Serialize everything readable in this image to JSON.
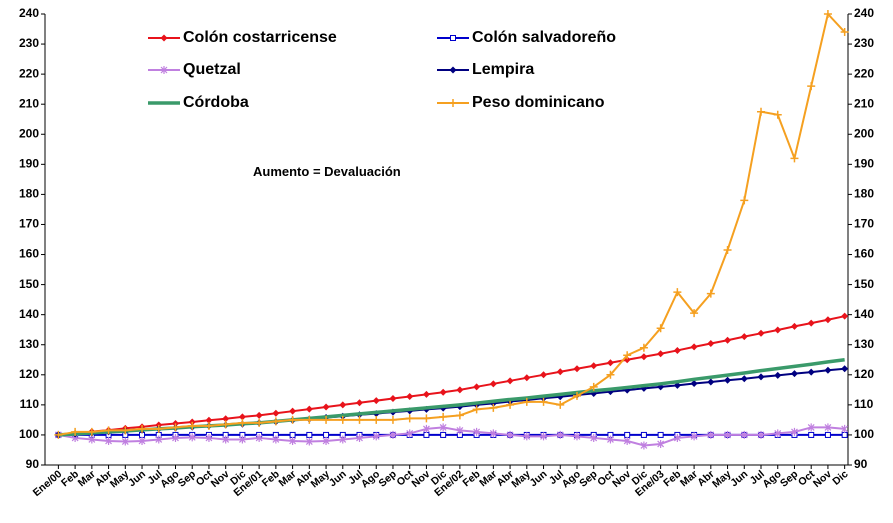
{
  "chart_data": {
    "type": "line",
    "annotations": [
      "Aumento = Devaluación"
    ],
    "categories": [
      "Ene/00",
      "Feb",
      "Mar",
      "Abr",
      "May",
      "Jun",
      "Jul",
      "Ago",
      "Sep",
      "Oct",
      "Nov",
      "Dic",
      "Ene/01",
      "Feb",
      "Mar",
      "Abr",
      "May",
      "Jun",
      "Jul",
      "Ago",
      "Sep",
      "Oct",
      "Nov",
      "Dic",
      "Ene/02",
      "Feb",
      "Mar",
      "Abr",
      "May",
      "Jun",
      "Jul",
      "Ago",
      "Sep",
      "Oct",
      "Nov",
      "Dic",
      "Ene/03",
      "Feb",
      "Mar",
      "Abr",
      "May",
      "Jun",
      "Jul",
      "Ago",
      "Sep",
      "Oct",
      "Nov",
      "Dic"
    ],
    "ylim": [
      90,
      240
    ],
    "yticks": [
      90,
      100,
      110,
      120,
      130,
      140,
      150,
      160,
      170,
      180,
      190,
      200,
      210,
      220,
      230,
      240
    ],
    "y2lim": [
      90,
      240
    ],
    "y2ticks": [
      90,
      100,
      110,
      120,
      130,
      140,
      150,
      160,
      170,
      180,
      190,
      200,
      210,
      220,
      230,
      240
    ],
    "grid": false,
    "series": [
      {
        "name": "Colón costarricense",
        "color": "#e8131b",
        "marker": "diamond",
        "values": [
          100,
          100.5,
          101.1,
          101.6,
          102.2,
          102.7,
          103.3,
          103.8,
          104.3,
          104.9,
          105.4,
          106,
          106.5,
          107.2,
          107.9,
          108.6,
          109.3,
          110,
          110.7,
          111.4,
          112.1,
          112.8,
          113.5,
          114.2,
          115,
          116,
          117,
          118,
          119,
          120,
          121,
          122,
          123,
          124,
          125,
          126,
          127,
          128.1,
          129.3,
          130.4,
          131.5,
          132.7,
          133.8,
          134.9,
          136.1,
          137.2,
          138.3,
          139.5
        ]
      },
      {
        "name": "Colón salvadoreño",
        "color": "#0000cc",
        "marker": "square",
        "values": [
          100,
          100,
          100,
          100,
          100,
          100,
          100,
          100,
          100,
          100,
          100,
          100,
          100,
          100,
          100,
          100,
          100,
          100,
          100,
          100,
          100,
          100,
          100,
          100,
          100,
          100,
          100,
          100,
          100,
          100,
          100,
          100,
          100,
          100,
          100,
          100,
          100,
          100,
          100,
          100,
          100,
          100,
          100,
          100,
          100,
          100,
          100,
          100
        ]
      },
      {
        "name": "Quetzal",
        "color": "#c080e0",
        "marker": "star",
        "values": [
          100,
          99,
          98.5,
          98,
          97.8,
          98,
          98.5,
          99,
          99.2,
          99,
          98.5,
          98.5,
          99,
          98.5,
          98,
          97.8,
          98,
          98.5,
          99,
          99.5,
          100,
          100.5,
          102,
          102.5,
          101.5,
          101,
          100.5,
          100,
          99.5,
          99.5,
          100,
          99.5,
          99,
          98.5,
          98,
          96.5,
          97,
          99,
          99.5,
          100,
          100,
          100,
          100,
          100.5,
          101,
          102.5,
          102.5,
          102
        ]
      },
      {
        "name": "Lempira",
        "color": "#000080",
        "marker": "diamond",
        "values": [
          100,
          100.3,
          100.6,
          101,
          101.3,
          101.6,
          102,
          102.3,
          102.6,
          103,
          103.3,
          103.6,
          104,
          104.4,
          104.9,
          105.3,
          105.8,
          106.2,
          106.7,
          107.1,
          107.6,
          108,
          108.5,
          108.9,
          109.4,
          110,
          110.5,
          111.1,
          111.6,
          112.2,
          112.7,
          113.3,
          113.8,
          114.4,
          114.9,
          115.5,
          116,
          116.5,
          117.1,
          117.6,
          118.2,
          118.7,
          119.3,
          119.8,
          120.4,
          120.9,
          121.5,
          122
        ]
      },
      {
        "name": "Córdoba",
        "color": "#3a9a6a",
        "marker": "none",
        "values": [
          100,
          100.3,
          100.7,
          101,
          101.3,
          101.7,
          102,
          102.3,
          102.7,
          103,
          103.3,
          103.7,
          104,
          104.5,
          105,
          105.5,
          106,
          106.5,
          107,
          107.5,
          108,
          108.5,
          109,
          109.5,
          110,
          110.6,
          111.2,
          111.8,
          112.3,
          112.9,
          113.5,
          114.1,
          114.7,
          115.2,
          115.8,
          116.4,
          117,
          117.7,
          118.5,
          119.2,
          119.9,
          120.6,
          121.4,
          122.1,
          122.8,
          123.5,
          124.3,
          125
        ]
      },
      {
        "name": "Peso dominicano",
        "color": "#f5a020",
        "marker": "plus",
        "values": [
          100,
          101,
          101,
          101.5,
          101.5,
          102,
          102,
          102.5,
          103,
          103,
          103.5,
          104,
          104,
          104.5,
          105,
          105,
          105,
          105,
          105,
          105,
          105,
          105.5,
          105.5,
          106,
          106.5,
          108.5,
          109,
          110,
          111,
          111,
          110,
          113,
          116,
          120,
          126.5,
          129,
          135.5,
          147.5,
          140.5,
          147,
          161.5,
          178,
          207.5,
          206.5,
          192,
          216,
          240,
          234
        ]
      }
    ]
  }
}
